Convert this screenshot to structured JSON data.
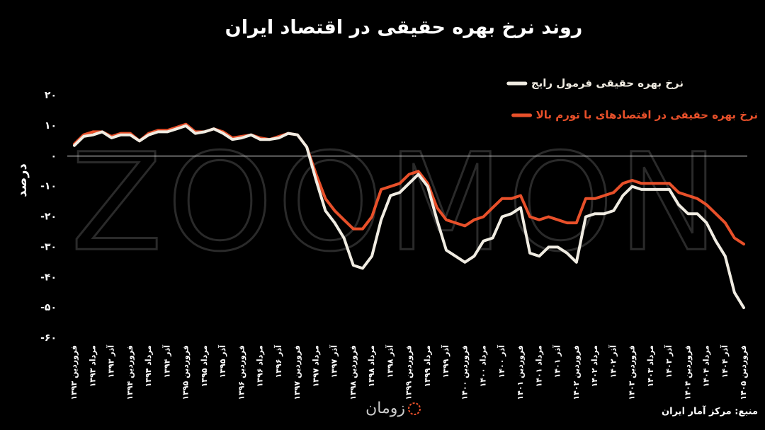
{
  "chart_data": {
    "type": "line",
    "title": "روند نرخ بهره حقیقی در اقتصاد ایران",
    "y_label": "درصد",
    "watermark": "ZOOMON",
    "brand": "زومان",
    "source": "منبع: مرکز آمار ایران",
    "categories": [
      "فروردین ۱۳۹۳",
      null,
      "مرداد ۱۳۹۳",
      null,
      "آذر ۱۳۹۳",
      null,
      "فروردین ۱۳۹۴",
      null,
      "مرداد ۱۳۹۴",
      null,
      "آذر ۱۳۹۴",
      null,
      "فروردین ۱۳۹۵",
      null,
      "مرداد ۱۳۹۵",
      null,
      "آذر ۱۳۹۵",
      null,
      "فروردین ۱۳۹۶",
      null,
      "مرداد ۱۳۹۶",
      null,
      "آذر ۱۳۹۶",
      null,
      "فروردین ۱۳۹۷",
      null,
      "مرداد ۱۳۹۷",
      null,
      "آذر ۱۳۹۷",
      null,
      "فروردین ۱۳۹۸",
      null,
      "مرداد ۱۳۹۸",
      null,
      "آذر ۱۳۹۸",
      null,
      "فروردین ۱۳۹۹",
      null,
      "مرداد ۱۳۹۹",
      null,
      "آذر ۱۳۹۹",
      null,
      "فروردین ۱۴۰۰",
      null,
      "مرداد ۱۴۰۰",
      null,
      "آذر ۱۴۰۰",
      null,
      "فروردین ۱۴۰۱",
      null,
      "مرداد ۱۴۰۱",
      null,
      "آذر ۱۴۰۱",
      null,
      "فروردین ۱۴۰۲",
      null,
      "مرداد ۱۴۰۲",
      null,
      "آذر ۱۴۰۲",
      null,
      "فروردین ۱۴۰۳",
      null,
      "مرداد ۱۴۰۳",
      null,
      "آذر ۱۴۰۳",
      null,
      "فروردین ۱۴۰۴",
      null,
      "مرداد ۱۴۰۴",
      null,
      "آذر ۱۴۰۴",
      null,
      "فروردین ۱۴۰۵"
    ],
    "series": [
      {
        "name": "نرخ بهره حقیقی فرمول رایج",
        "color": "#f0ece2",
        "values": [
          3.5,
          6.5,
          7,
          8,
          6,
          7,
          7,
          5,
          7,
          8,
          8,
          9,
          10,
          7.5,
          8,
          9,
          7.5,
          5.5,
          6,
          7,
          5.5,
          5.5,
          6,
          7.5,
          7,
          3,
          -8,
          -18,
          -22,
          -27,
          -36,
          -37,
          -33,
          -21,
          -13,
          -12,
          -9,
          -6,
          -10,
          -21,
          -31,
          -33,
          -35,
          -33,
          -28,
          -27,
          -20,
          -19,
          -17,
          -32,
          -33,
          -30,
          -30,
          -32,
          -35,
          -20,
          -19,
          -19,
          -18,
          -13,
          -10,
          -11,
          -11,
          -11,
          -11,
          -16,
          -19,
          -19,
          -22,
          -28,
          -33,
          -45,
          -50
        ]
      },
      {
        "name": "نرخ بهره حقیقی در اقتصادهای با تورم بالا",
        "color": "#e8502a",
        "values": [
          4,
          7,
          8,
          8,
          6.5,
          7.5,
          7.5,
          5,
          7.5,
          8.5,
          8.5,
          9.5,
          10.5,
          8,
          8,
          9,
          8,
          6,
          6.5,
          7,
          6,
          5.5,
          6.5,
          7.5,
          7,
          3,
          -6,
          -14,
          -18,
          -21,
          -24,
          -24,
          -20,
          -11,
          -10,
          -9,
          -6,
          -5,
          -9,
          -17,
          -21,
          -22,
          -23,
          -21,
          -20,
          -17,
          -14,
          -14,
          -13,
          -20,
          -21,
          -20,
          -21,
          -22,
          -22,
          -14,
          -14,
          -13,
          -12,
          -9,
          -8,
          -9,
          -9,
          -9,
          -9,
          -12,
          -13,
          -14,
          -16,
          -19,
          -22,
          -27,
          -29
        ]
      }
    ],
    "ylim": [
      -60,
      20
    ],
    "yticks": [
      {
        "value": 20,
        "label": "۲۰"
      },
      {
        "value": 10,
        "label": "۱۰"
      },
      {
        "value": 0,
        "label": "۰"
      },
      {
        "value": -10,
        "label": "-۱۰"
      },
      {
        "value": -20,
        "label": "-۲۰"
      },
      {
        "value": -30,
        "label": "-۳۰"
      },
      {
        "value": -40,
        "label": "-۴۰"
      },
      {
        "value": -50,
        "label": "-۵۰"
      },
      {
        "value": -60,
        "label": "-۶۰"
      }
    ],
    "zero_line": true
  }
}
